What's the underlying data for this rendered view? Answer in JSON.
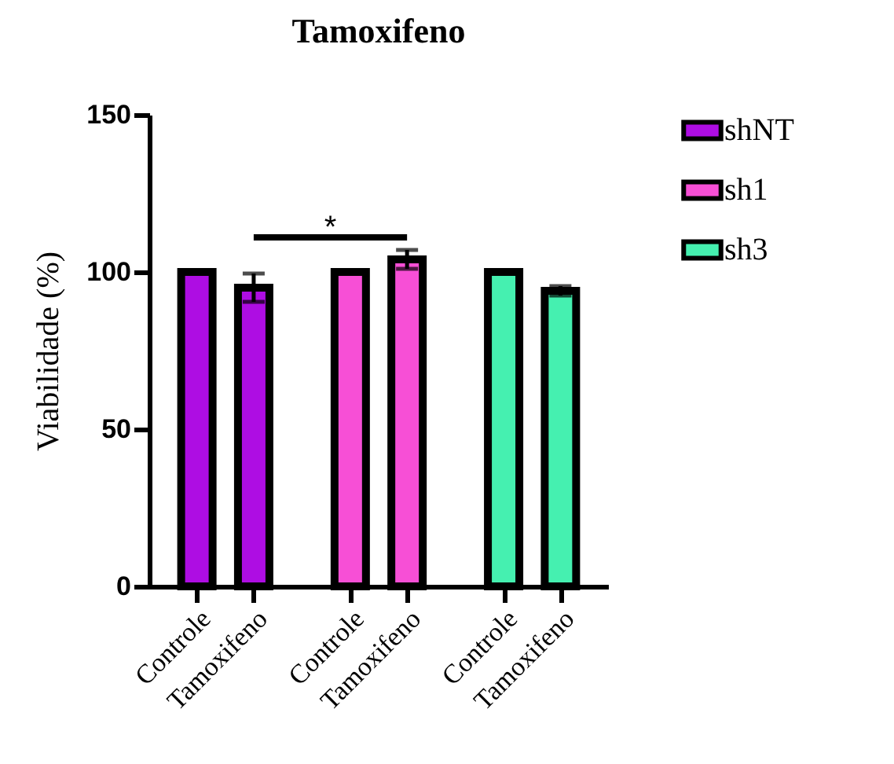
{
  "chart_data": {
    "type": "bar",
    "title": "Tamoxifeno",
    "ylabel": "Viabilidade (%)",
    "categories": [
      "Controle",
      "Tamoxifeno",
      "Controle",
      "Tamoxifeno",
      "Controle",
      "Tamoxifeno"
    ],
    "series": [
      {
        "name": "shNT",
        "color": "#ae0de3",
        "values": [
          100,
          95,
          null,
          null,
          null,
          null
        ],
        "errors": [
          null,
          4.5,
          null,
          null,
          null,
          null
        ]
      },
      {
        "name": "sh1",
        "color": "#f74fd6",
        "values": [
          null,
          null,
          100,
          104,
          null,
          null
        ],
        "errors": [
          null,
          null,
          null,
          3,
          null,
          null
        ]
      },
      {
        "name": "sh3",
        "color": "#45f0b0",
        "values": [
          null,
          null,
          null,
          null,
          100,
          94
        ],
        "errors": [
          null,
          null,
          null,
          null,
          null,
          1.5
        ]
      }
    ],
    "ylim": [
      0,
      150
    ],
    "yticks": [
      0,
      50,
      100,
      150
    ],
    "grid": false,
    "legend": "top right",
    "annotations": [
      "*"
    ]
  }
}
